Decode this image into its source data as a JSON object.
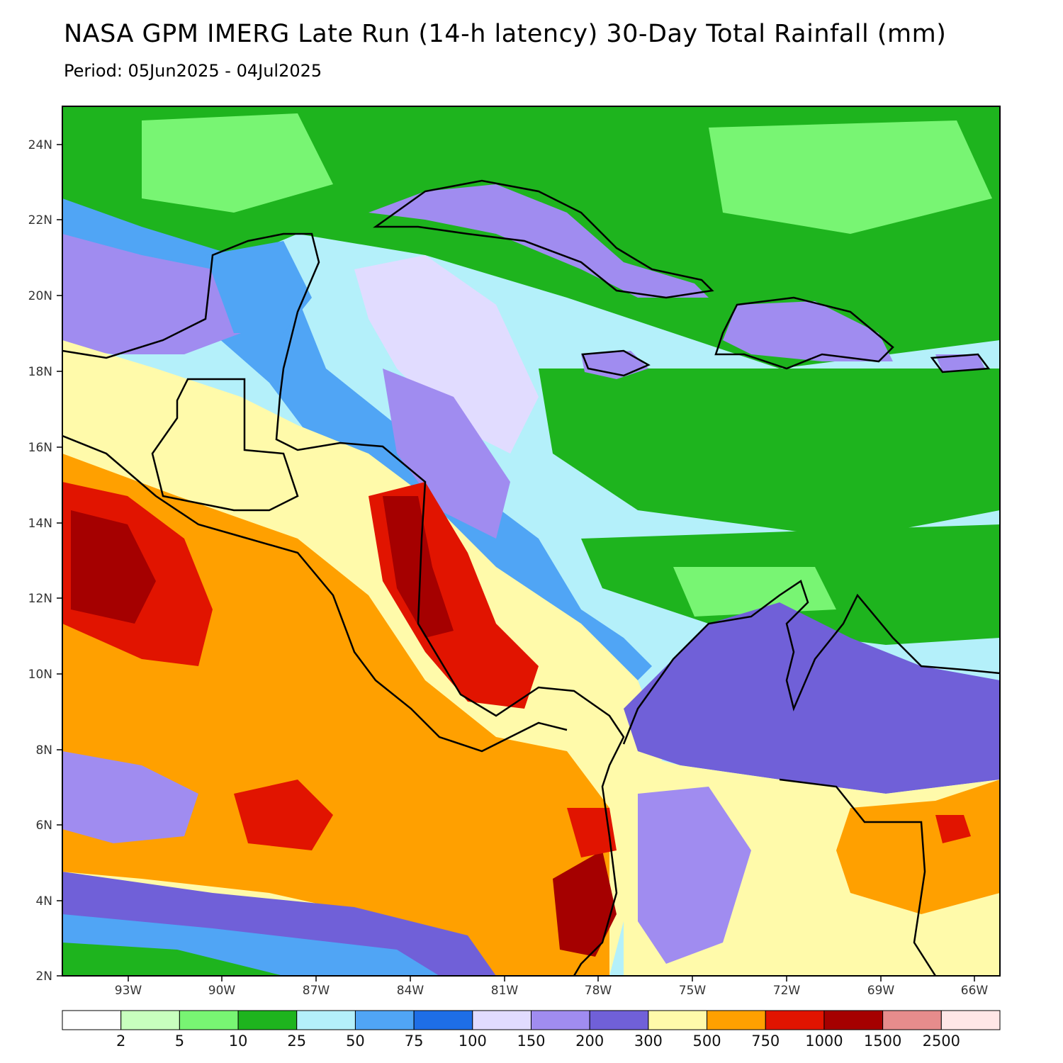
{
  "header": {
    "title": "NASA GPM IMERG Late Run (14-h latency) 30-Day Total Rainfall (mm)",
    "period": "Period: 05Jun2025 - 04Jul2025"
  },
  "axes": {
    "y_ticks": [
      "24N",
      "22N",
      "20N",
      "18N",
      "16N",
      "14N",
      "12N",
      "10N",
      "8N",
      "6N",
      "4N",
      "2N"
    ],
    "x_ticks": [
      "93W",
      "90W",
      "87W",
      "84W",
      "81W",
      "78W",
      "75W",
      "72W",
      "69W",
      "66W"
    ]
  },
  "colorbar": {
    "colors": [
      "#ffffff",
      "#c8ffbe",
      "#78f573",
      "#1eb41e",
      "#b4f0fa",
      "#50a5f5",
      "#1e6ee6",
      "#e1dcff",
      "#a08cf0",
      "#7060d8",
      "#fffaaa",
      "#ffa000",
      "#e11400",
      "#a50000",
      "#e68c8c",
      "#ffe6e6"
    ],
    "labels": [
      "2",
      "5",
      "10",
      "25",
      "50",
      "75",
      "100",
      "150",
      "200",
      "300",
      "500",
      "750",
      "1000",
      "1500",
      "2500"
    ]
  }
}
